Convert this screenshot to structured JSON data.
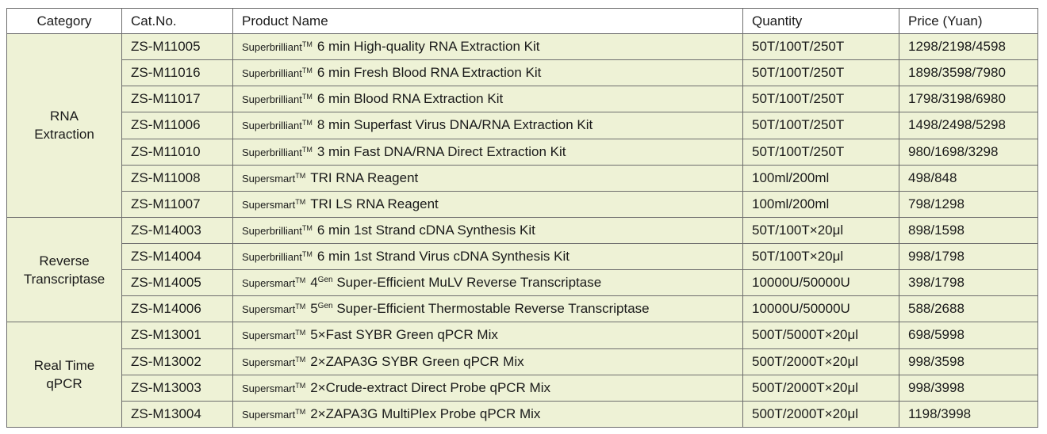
{
  "headers": {
    "category": "Category",
    "cat_no": "Cat.No.",
    "product_name": "Product Name",
    "quantity": "Quantity",
    "price": "Price (Yuan)"
  },
  "groups": [
    {
      "category_lines": [
        "RNA",
        "Extraction"
      ],
      "rows": [
        {
          "cat_no": "ZS-M11005",
          "brand": "Superbrilliant",
          "tm": "TM",
          "name": "6 min High-quality RNA Extraction Kit",
          "quantity": "50T/100T/250T",
          "price": "1298/2198/4598"
        },
        {
          "cat_no": "ZS-M11016",
          "brand": "Superbrilliant",
          "tm": "TM",
          "name": "6 min Fresh Blood RNA Extraction Kit",
          "quantity": "50T/100T/250T",
          "price": "1898/3598/7980"
        },
        {
          "cat_no": "ZS-M11017",
          "brand": "Superbrilliant",
          "tm": "TM",
          "name": "6 min Blood RNA Extraction Kit",
          "quantity": "50T/100T/250T",
          "price": "1798/3198/6980"
        },
        {
          "cat_no": "ZS-M11006",
          "brand": "Superbrilliant",
          "tm": "TM",
          "name": "8 min Superfast Virus DNA/RNA Extraction Kit",
          "quantity": "50T/100T/250T",
          "price": "1498/2498/5298"
        },
        {
          "cat_no": "ZS-M11010",
          "brand": "Superbrilliant",
          "tm": "TM",
          "name": "3 min Fast DNA/RNA Direct Extraction Kit",
          "quantity": "50T/100T/250T",
          "price": "980/1698/3298"
        },
        {
          "cat_no": "ZS-M11008",
          "brand": "Supersmart",
          "tm": "TM",
          "name": "TRI RNA Reagent",
          "quantity": "100ml/200ml",
          "price": "498/848"
        },
        {
          "cat_no": "ZS-M11007",
          "brand": "Supersmart",
          "tm": "TM",
          "name": "TRI LS RNA Reagent",
          "quantity": "100ml/200ml",
          "price": "798/1298"
        }
      ]
    },
    {
      "category_lines": [
        "Reverse",
        "Transcriptase"
      ],
      "rows": [
        {
          "cat_no": "ZS-M14003",
          "brand": "Superbrilliant",
          "tm": "TM",
          "name": "6 min 1st Strand cDNA Synthesis Kit",
          "quantity": "50T/100T×20μl",
          "price": "898/1598"
        },
        {
          "cat_no": "ZS-M14004",
          "brand": "Superbrilliant",
          "tm": "TM",
          "name": "6 min 1st Strand Virus cDNA Synthesis Kit",
          "quantity": "50T/100T×20μl",
          "price": "998/1798"
        },
        {
          "cat_no": "ZS-M14005",
          "brand": "Supersmart",
          "tm": "TM",
          "num": "4",
          "gen": "Gen",
          "name": "Super-Efficient MuLV Reverse Transcriptase",
          "quantity": "10000U/50000U",
          "price": "398/1798"
        },
        {
          "cat_no": "ZS-M14006",
          "brand": "Supersmart",
          "tm": "TM",
          "num": "5",
          "gen": "Gen",
          "name": "Super-Efficient Thermostable Reverse Transcriptase",
          "quantity": "10000U/50000U",
          "price": "588/2688"
        }
      ]
    },
    {
      "category_lines": [
        "Real Time",
        "qPCR"
      ],
      "rows": [
        {
          "cat_no": "ZS-M13001",
          "brand": "Supersmart",
          "tm": "TM",
          "name": "5×Fast SYBR Green qPCR Mix",
          "quantity": "500T/5000T×20μl",
          "price": "698/5998"
        },
        {
          "cat_no": "ZS-M13002",
          "brand": "Supersmart",
          "tm": "TM",
          "name": "2×ZAPA3G SYBR Green qPCR Mix",
          "quantity": "500T/2000T×20μl",
          "price": "998/3598"
        },
        {
          "cat_no": "ZS-M13003",
          "brand": "Supersmart",
          "tm": "TM",
          "name": "2×Crude-extract Direct Probe qPCR Mix",
          "quantity": "500T/2000T×20μl",
          "price": "998/3998"
        },
        {
          "cat_no": "ZS-M13004",
          "brand": "Supersmart",
          "tm": "TM",
          "name": "2×ZAPA3G MultiPlex Probe qPCR Mix",
          "quantity": "500T/2000T×20μl",
          "price": "1198/3998"
        }
      ]
    }
  ]
}
